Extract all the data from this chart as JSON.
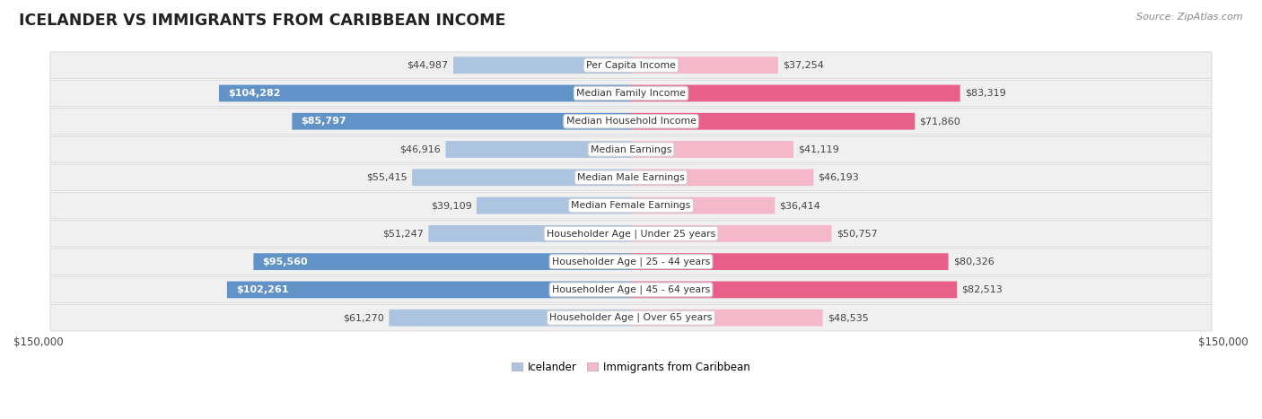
{
  "title": "Icelander vs Immigrants from Caribbean Income",
  "source": "Source: ZipAtlas.com",
  "categories": [
    "Per Capita Income",
    "Median Family Income",
    "Median Household Income",
    "Median Earnings",
    "Median Male Earnings",
    "Median Female Earnings",
    "Householder Age | Under 25 years",
    "Householder Age | 25 - 44 years",
    "Householder Age | 45 - 64 years",
    "Householder Age | Over 65 years"
  ],
  "icelander_values": [
    44987,
    104282,
    85797,
    46916,
    55415,
    39109,
    51247,
    95560,
    102261,
    61270
  ],
  "caribbean_values": [
    37254,
    83319,
    71860,
    41119,
    46193,
    36414,
    50757,
    80326,
    82513,
    48535
  ],
  "max_value": 150000,
  "icelander_color_light": "#adc4e0",
  "icelander_color_dark": "#6192c8",
  "caribbean_color_light": "#f5b8cb",
  "caribbean_color_dark": "#e8608a",
  "white_label_threshold": 65000,
  "row_bg_color": "#f0f0f0",
  "row_border_color": "#d8d8d8",
  "center_bg": "#ffffff",
  "center_border": "#d0d0d0"
}
